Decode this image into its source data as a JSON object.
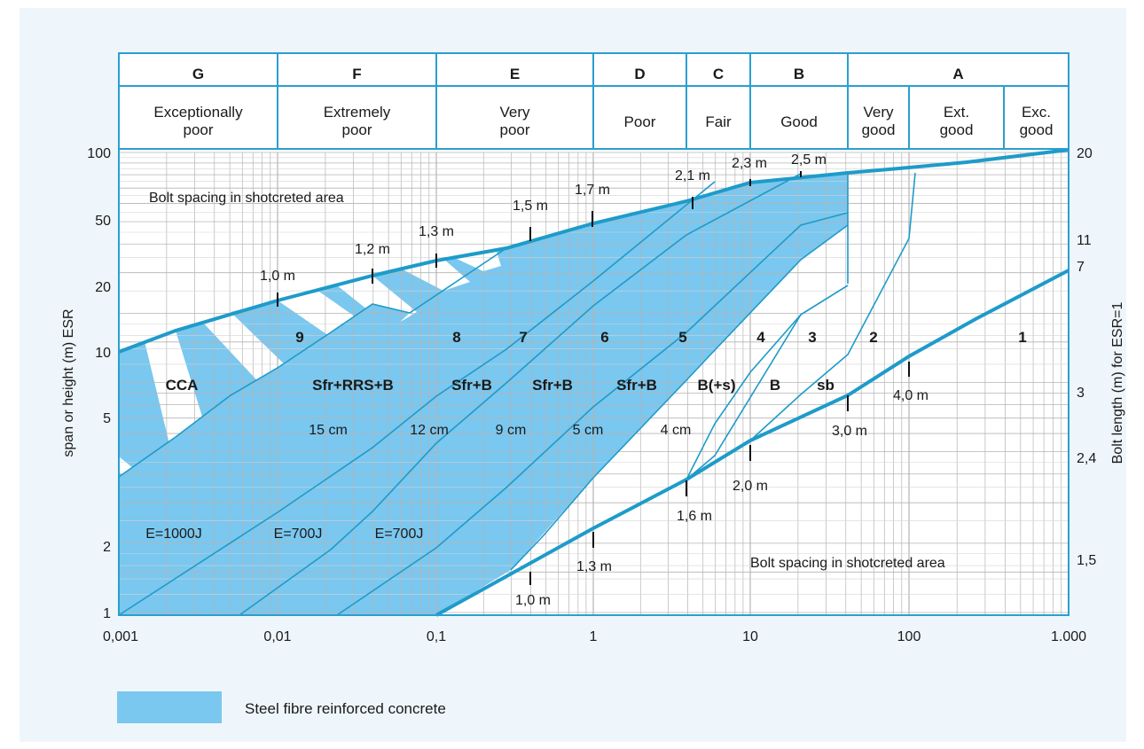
{
  "chart_data": {
    "type": "area",
    "title": "",
    "classes": [
      {
        "letter": "G",
        "name": "Exceptionally poor",
        "lines": [
          "Exceptionally",
          "poor"
        ]
      },
      {
        "letter": "F",
        "name": "Extremely poor",
        "lines": [
          "Extremely",
          "poor"
        ]
      },
      {
        "letter": "E",
        "name": "Very poor",
        "lines": [
          "Very",
          "poor"
        ]
      },
      {
        "letter": "D",
        "name": "Poor",
        "lines": [
          "Poor"
        ]
      },
      {
        "letter": "C",
        "name": "Fair",
        "lines": [
          "Fair"
        ]
      },
      {
        "letter": "B",
        "name": "Good",
        "lines": [
          "Good"
        ]
      },
      {
        "letter": "A",
        "name": "Very good / Ext. good / Exc. good",
        "lines": []
      }
    ],
    "class_a_subnames": [
      {
        "name": "Very good",
        "lines": [
          "Very",
          "good"
        ]
      },
      {
        "name": "Ext. good",
        "lines": [
          "Ext.",
          "good"
        ]
      },
      {
        "name": "Exc. good",
        "lines": [
          "Exc.",
          "good"
        ]
      }
    ],
    "x_axis": {
      "scale": "log",
      "range": [
        0.001,
        1000
      ],
      "tick_labels": [
        "0,001",
        "0,01",
        "0,1",
        "1",
        "10",
        "100",
        "1.000"
      ]
    },
    "y_axis_left": {
      "label": "span or height (m) ESR",
      "scale": "log",
      "range": [
        1,
        100
      ],
      "tick_labels": [
        "1",
        "2",
        "5",
        "10",
        "20",
        "50",
        "100"
      ]
    },
    "y_axis_right": {
      "label": "Bolt length (m) for ESR=1",
      "tick_labels": [
        "20",
        "11",
        "7",
        "3",
        "2,4",
        "1,5"
      ]
    },
    "legend": {
      "label": "Steel fibre reinforced concrete",
      "color": "#7ac7ef",
      "position": "bottom-left"
    },
    "annotations": {
      "upper_area": "Bolt spacing in shotcreted area",
      "lower_area": "Bolt spacing in shotcreted area"
    },
    "upper_bolt_spacings": [
      "1,0 m",
      "1,2 m",
      "1,3 m",
      "1,5 m",
      "1,7 m",
      "2,1 m",
      "2,3 m",
      "2,5 m"
    ],
    "lower_bolt_spacings": [
      "1,0 m",
      "1,3 m",
      "1,6 m",
      "2,0 m",
      "3,0 m",
      "4,0 m"
    ],
    "support_categories": [
      {
        "number": "9",
        "support": "Sfr+RRS+B"
      },
      {
        "number": "8",
        "support": "Sfr+B"
      },
      {
        "number": "7",
        "support": "Sfr+B"
      },
      {
        "number": "6",
        "support": "Sfr+B"
      },
      {
        "number": "5",
        "support": "B(+s)"
      },
      {
        "number": "4",
        "support": "B"
      },
      {
        "number": "3",
        "support": "sb"
      },
      {
        "number": "2",
        "support": ""
      },
      {
        "number": "1",
        "support": ""
      }
    ],
    "cca_label": "CCA",
    "shotcrete_thicknesses": [
      "15 cm",
      "12 cm",
      "9 cm",
      "5 cm",
      "4 cm"
    ],
    "energy_absorption": [
      "E=1000J",
      "E=700J",
      "E=700J"
    ],
    "colors": {
      "fill": "#7ac7ef",
      "line": "#1e9bc9",
      "frame": "#2a9fd0",
      "grid": "#b4b4b4",
      "background": "#eef6fb"
    }
  }
}
